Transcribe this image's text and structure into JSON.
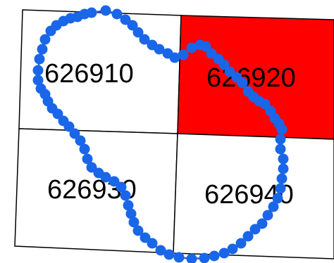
{
  "grid": {
    "cells": [
      {
        "id": "626910",
        "label": "626910",
        "highlighted": false
      },
      {
        "id": "626920",
        "label": "626920",
        "highlighted": true
      },
      {
        "id": "626930",
        "label": "626930",
        "highlighted": false
      },
      {
        "id": "626940",
        "label": "626940",
        "highlighted": false
      }
    ]
  },
  "colors": {
    "highlight_fill": "#ff0000",
    "cell_fill": "#ffffff",
    "grid_line": "#000000",
    "track": "#1f5fd8",
    "track_point": "#1a66e8"
  }
}
